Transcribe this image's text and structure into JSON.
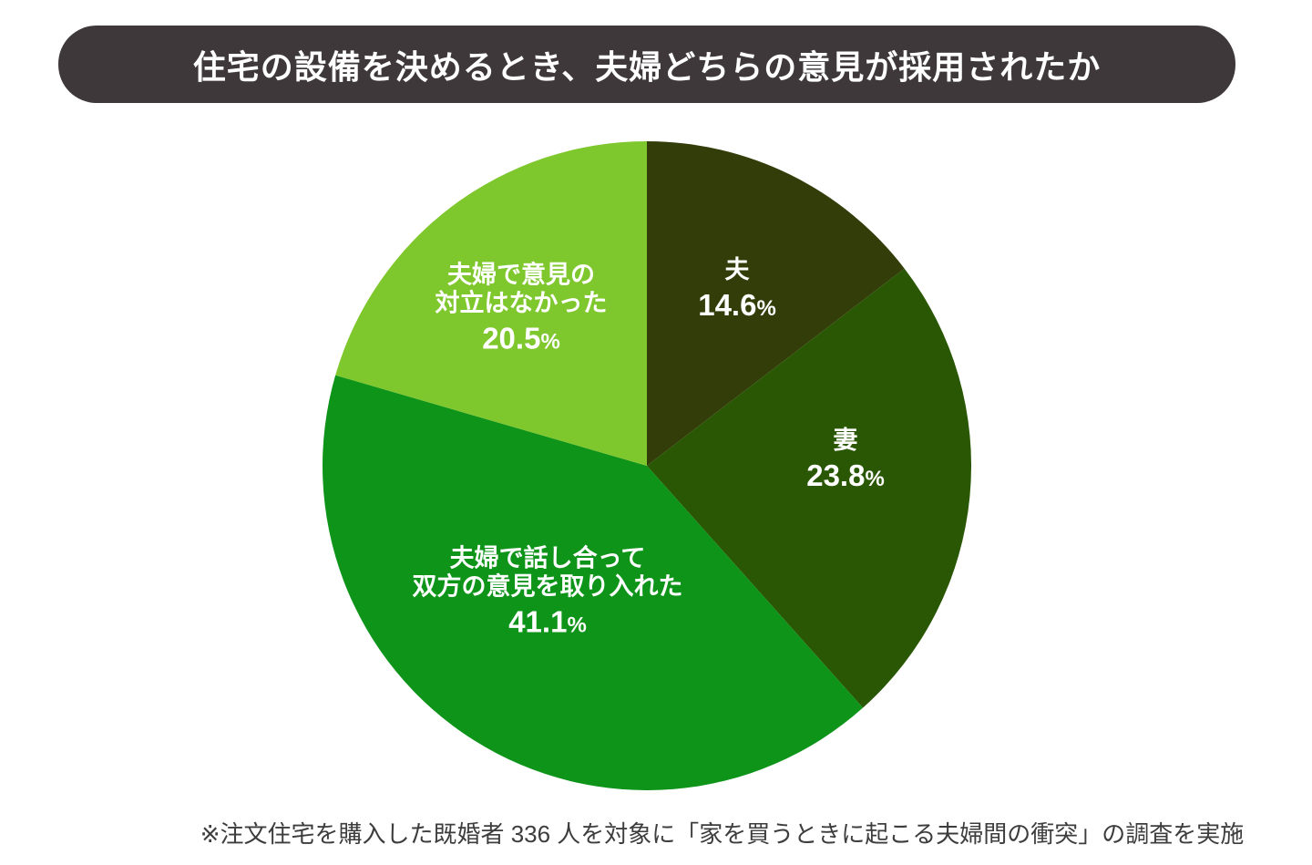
{
  "title": {
    "text": "住宅の設備を決めるとき、夫婦どちらの意見が採用されたか"
  },
  "footnote": {
    "text": "※注文住宅を購入した既婚者 336 人を対象に「家を買うときに起こる夫婦間の衝突」の調査を実施"
  },
  "colors": {
    "background": "#ffffff",
    "banner_bg": "#3e383a",
    "banner_text": "#ffffff",
    "label_text": "#ffffff",
    "footnote_text": "#3d3d3d"
  },
  "chart_data": {
    "type": "pie",
    "title": "住宅の設備を決めるとき、夫婦どちらの意見が採用されたか",
    "unit": "%",
    "start_angle_deg": 0,
    "direction": "clockwise",
    "legend_position": "none",
    "slices": [
      {
        "id": "husband",
        "label_lines": [
          "夫"
        ],
        "value": 14.6,
        "display_value": "14.6",
        "percent_sign": "%",
        "color": "#333d0a"
      },
      {
        "id": "wife",
        "label_lines": [
          "妻"
        ],
        "value": 23.8,
        "display_value": "23.8",
        "percent_sign": "%",
        "color": "#295703"
      },
      {
        "id": "joint-discussion",
        "label_lines": [
          "夫婦で話し合って",
          "双方の意見を取り入れた"
        ],
        "value": 41.1,
        "display_value": "41.1",
        "percent_sign": "%",
        "color": "#0d9419"
      },
      {
        "id": "no-conflict",
        "label_lines": [
          "夫婦で意見の",
          "対立はなかった"
        ],
        "value": 20.5,
        "display_value": "20.5",
        "percent_sign": "%",
        "color": "#7ec72c"
      }
    ]
  }
}
